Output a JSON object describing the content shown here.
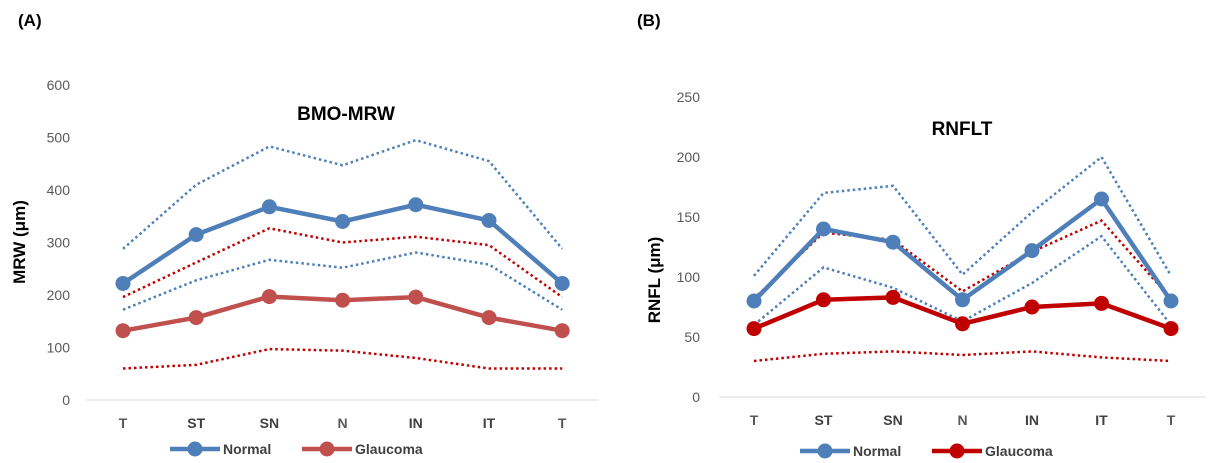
{
  "chart_data": [
    {
      "panel_label": "(A)",
      "type": "line",
      "title": "BMO-MRW",
      "ylabel": "MRW (μm)",
      "ylim": [
        0,
        600
      ],
      "yticks": [
        "0",
        "100",
        "200",
        "300",
        "400",
        "500",
        "600"
      ],
      "categories": [
        "T",
        "ST",
        "SN",
        "N",
        "IN",
        "IT",
        "T"
      ],
      "series": [
        {
          "name": "Normal",
          "color": "#4e7fb8",
          "style": "solid-marker",
          "values": [
            222,
            315,
            368,
            340,
            372,
            342,
            222
          ]
        },
        {
          "color": "#4e7fb8",
          "style": "dotted",
          "values": [
            288,
            410,
            483,
            447,
            495,
            455,
            288
          ]
        },
        {
          "color": "#4e7fb8",
          "style": "dotted",
          "values": [
            172,
            228,
            267,
            252,
            281,
            258,
            172
          ]
        },
        {
          "name": "Glaucoma",
          "color": "#c0504d",
          "style": "solid-marker",
          "values": [
            132,
            157,
            197,
            190,
            196,
            157,
            132
          ]
        },
        {
          "color": "#c00000",
          "style": "dotted",
          "values": [
            196,
            262,
            327,
            300,
            311,
            295,
            196
          ]
        },
        {
          "color": "#c00000",
          "style": "dotted",
          "values": [
            60,
            67,
            97,
            94,
            80,
            60,
            60
          ]
        }
      ],
      "legend": {
        "position": "bottom",
        "items": [
          "Normal",
          "Glaucoma"
        ]
      }
    },
    {
      "panel_label": "(B)",
      "type": "line",
      "title": "RNFLT",
      "ylabel": "RNFL (μm)",
      "ylim": [
        0,
        250
      ],
      "yticks": [
        "0",
        "50",
        "100",
        "150",
        "200",
        "250"
      ],
      "categories": [
        "T",
        "ST",
        "SN",
        "N",
        "IN",
        "IT",
        "T"
      ],
      "series": [
        {
          "name": "Normal",
          "color": "#4e7fb8",
          "style": "solid-marker",
          "values": [
            80,
            140,
            129,
            81,
            122,
            165,
            80
          ]
        },
        {
          "color": "#4e7fb8",
          "style": "dotted",
          "values": [
            101,
            170,
            176,
            102,
            154,
            200,
            101
          ]
        },
        {
          "color": "#4e7fb8",
          "style": "dotted",
          "values": [
            60,
            108,
            91,
            63,
            95,
            134,
            60
          ]
        },
        {
          "name": "Glaucoma",
          "color": "#c00000",
          "style": "solid-marker",
          "values": [
            57,
            81,
            83,
            61,
            75,
            78,
            57
          ]
        },
        {
          "color": "#c00000",
          "style": "dotted",
          "values": [
            82,
            137,
            131,
            88,
            121,
            147,
            82
          ]
        },
        {
          "color": "#c00000",
          "style": "dotted",
          "values": [
            30,
            36,
            38,
            35,
            38,
            33,
            30
          ]
        }
      ],
      "legend": {
        "position": "bottom",
        "items": [
          "Normal",
          "Glaucoma"
        ]
      }
    }
  ]
}
